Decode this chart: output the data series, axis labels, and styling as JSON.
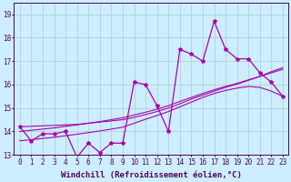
{
  "xlabel": "Windchill (Refroidissement éolien,°C)",
  "background_color": "#cceeff",
  "grid_color": "#aacccc",
  "line_color": "#aa00aa",
  "x": [
    0,
    1,
    2,
    3,
    4,
    5,
    6,
    7,
    8,
    9,
    10,
    11,
    12,
    13,
    14,
    15,
    16,
    17,
    18,
    19,
    20,
    21,
    22,
    23
  ],
  "y_main": [
    14.2,
    13.6,
    13.9,
    13.9,
    14.0,
    12.9,
    13.5,
    13.1,
    13.5,
    13.5,
    16.1,
    16.0,
    15.1,
    14.0,
    17.5,
    17.3,
    17.0,
    18.7,
    17.5,
    17.1,
    17.1,
    16.5,
    16.1,
    15.5
  ],
  "y_reg1": [
    14.2,
    14.22,
    14.24,
    14.26,
    14.28,
    14.3,
    14.35,
    14.4,
    14.45,
    14.5,
    14.6,
    14.72,
    14.85,
    15.0,
    15.18,
    15.38,
    15.55,
    15.72,
    15.88,
    16.02,
    16.18,
    16.35,
    16.55,
    16.72
  ],
  "y_reg2": [
    14.0,
    14.05,
    14.1,
    14.15,
    14.22,
    14.28,
    14.35,
    14.42,
    14.5,
    14.58,
    14.7,
    14.82,
    14.95,
    15.1,
    15.28,
    15.45,
    15.62,
    15.78,
    15.92,
    16.05,
    16.2,
    16.35,
    16.5,
    16.65
  ],
  "y_reg3": [
    13.6,
    13.65,
    13.7,
    13.75,
    13.82,
    13.88,
    13.95,
    14.02,
    14.1,
    14.18,
    14.35,
    14.52,
    14.68,
    14.85,
    15.05,
    15.25,
    15.45,
    15.62,
    15.75,
    15.85,
    15.92,
    15.88,
    15.72,
    15.5
  ],
  "ylim": [
    13.0,
    19.5
  ],
  "xlim": [
    -0.5,
    23.5
  ],
  "yticks": [
    13,
    14,
    15,
    16,
    17,
    18,
    19
  ],
  "xticks": [
    0,
    1,
    2,
    3,
    4,
    5,
    6,
    7,
    8,
    9,
    10,
    11,
    12,
    13,
    14,
    15,
    16,
    17,
    18,
    19,
    20,
    21,
    22,
    23
  ],
  "fontsize_label": 6.5,
  "fontsize_tick": 5.5
}
